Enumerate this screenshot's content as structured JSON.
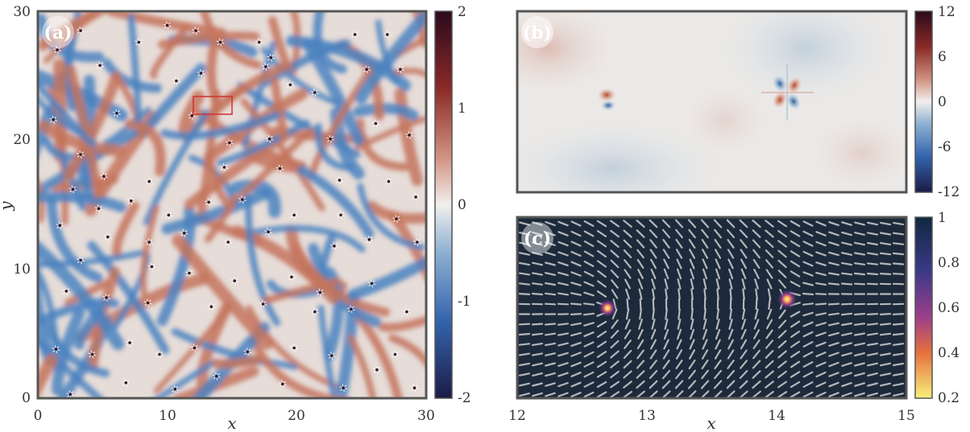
{
  "chart_data": [
    {
      "panel": "(a)",
      "type": "heatmap",
      "xlabel": "x",
      "ylabel": "y",
      "xlim": [
        0,
        30
      ],
      "ylim": [
        0,
        30
      ],
      "xticks": [
        "0",
        "10",
        "20",
        "30"
      ],
      "yticks": [
        "0",
        "10",
        "20",
        "30"
      ],
      "colorbar": {
        "range": [
          -2,
          2
        ],
        "ticks": [
          "2",
          "1",
          "0",
          "-1",
          "-2"
        ],
        "colormap": "blue-white-red"
      },
      "highlight_box": {
        "x": [
          12,
          15
        ],
        "y": [
          21.8,
          23.2
        ],
        "color": "#d03030"
      },
      "defects": [
        [
          1.5,
          27
        ],
        [
          3.3,
          28.5
        ],
        [
          7.8,
          27.6
        ],
        [
          10,
          28.9
        ],
        [
          12.2,
          28.5
        ],
        [
          14.1,
          27.6
        ],
        [
          17.1,
          27.6
        ],
        [
          18,
          26.4
        ],
        [
          24.5,
          28.2
        ],
        [
          27,
          28.2
        ],
        [
          4.8,
          25.8
        ],
        [
          10.7,
          24.6
        ],
        [
          12.6,
          25.2
        ],
        [
          17.6,
          25.7
        ],
        [
          19.5,
          24.3
        ],
        [
          21.4,
          23.7
        ],
        [
          25.4,
          25.5
        ],
        [
          28,
          25.5
        ],
        [
          1.2,
          21.6
        ],
        [
          6.1,
          22.1
        ],
        [
          11.9,
          21.9
        ],
        [
          14.8,
          19.8
        ],
        [
          17.9,
          20.1
        ],
        [
          22.6,
          20.1
        ],
        [
          26.1,
          21.3
        ],
        [
          28.7,
          20.4
        ],
        [
          3.3,
          18.9
        ],
        [
          5.1,
          17.2
        ],
        [
          8.6,
          16.8
        ],
        [
          14.4,
          17.9
        ],
        [
          18.7,
          17.8
        ],
        [
          23.3,
          16.9
        ],
        [
          27.1,
          16.8
        ],
        [
          29.2,
          15.6
        ],
        [
          2.7,
          16.2
        ],
        [
          4.7,
          14.7
        ],
        [
          7.2,
          15.3
        ],
        [
          10.1,
          14.2
        ],
        [
          13.2,
          15.2
        ],
        [
          15.8,
          15.4
        ],
        [
          19.8,
          14.2
        ],
        [
          23.4,
          14.2
        ],
        [
          27.7,
          13.9
        ],
        [
          1.7,
          13.4
        ],
        [
          5.4,
          12.5
        ],
        [
          8.6,
          12.1
        ],
        [
          11.3,
          12.8
        ],
        [
          14.7,
          12.1
        ],
        [
          17.8,
          12.9
        ],
        [
          22.9,
          11.8
        ],
        [
          25.6,
          12.3
        ],
        [
          29.3,
          12.1
        ],
        [
          3.3,
          10.7
        ],
        [
          8.8,
          10.2
        ],
        [
          11.7,
          9.7
        ],
        [
          15.2,
          9.1
        ],
        [
          19.6,
          9.4
        ],
        [
          21.8,
          8.2
        ],
        [
          25.8,
          8.9
        ],
        [
          2.2,
          8.3
        ],
        [
          5.3,
          7.8
        ],
        [
          8.5,
          7.4
        ],
        [
          13.4,
          7.1
        ],
        [
          17.4,
          7.3
        ],
        [
          21.4,
          6.7
        ],
        [
          24.2,
          6.9
        ],
        [
          28.5,
          6.7
        ],
        [
          1.4,
          3.8
        ],
        [
          4.2,
          3.4
        ],
        [
          7.1,
          4.3
        ],
        [
          9.4,
          3.4
        ],
        [
          12.1,
          3.9
        ],
        [
          16.2,
          3.6
        ],
        [
          19.8,
          3.9
        ],
        [
          22.7,
          3.3
        ],
        [
          27.6,
          3.4
        ],
        [
          2.5,
          0.3
        ],
        [
          6.8,
          1.2
        ],
        [
          10.6,
          0.7
        ],
        [
          13.8,
          1.7
        ],
        [
          18.9,
          1.1
        ],
        [
          23.6,
          0.8
        ],
        [
          26.2,
          2.2
        ],
        [
          29.1,
          0.8
        ]
      ]
    },
    {
      "panel": "(b)",
      "type": "heatmap",
      "xlim": [
        12,
        15
      ],
      "colorbar": {
        "range": [
          -12,
          12
        ],
        "ticks": [
          "12",
          "6",
          "0",
          "-6",
          "-12"
        ],
        "colormap": "blue-white-red"
      },
      "defects": [
        [
          12.68,
          0
        ],
        [
          14.1,
          0
        ]
      ]
    },
    {
      "panel": "(c)",
      "type": "heatmap",
      "xlabel": "x",
      "xlim": [
        12,
        15
      ],
      "xticks": [
        "12",
        "13",
        "14",
        "15"
      ],
      "colorbar": {
        "range": [
          0.2,
          1
        ],
        "ticks": [
          "1",
          "0.8",
          "0.6",
          "0.4",
          "0.2"
        ],
        "colormap": "inferno-reversed"
      },
      "defects": [
        [
          12.68,
          0
        ],
        [
          14.1,
          0
        ]
      ],
      "defect_charges": [
        0.5,
        -0.5
      ]
    }
  ],
  "labels": {
    "a": "(a)",
    "b": "(b)",
    "c": "(c)"
  },
  "colors": {
    "neg": "#4b83bf",
    "neutral": "#ececec",
    "pos": "#c4745d",
    "frame": "#555555",
    "director": "#cfcfcf",
    "background_c": "#1d2a3b"
  }
}
